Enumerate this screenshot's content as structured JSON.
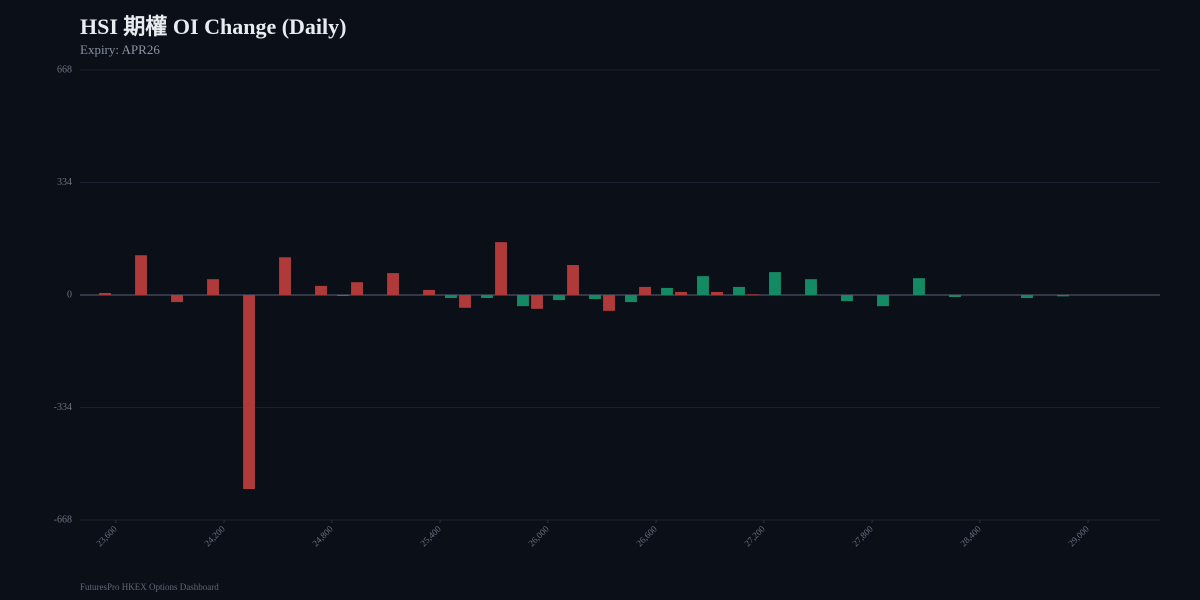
{
  "chart_data": {
    "type": "bar",
    "title": "HSI 期權 OI Change (Daily)",
    "subtitle": "Expiry: APR26",
    "footer": "FuturesPro HKEX Options Dashboard",
    "x": [
      23600,
      23800,
      24000,
      24200,
      24400,
      24600,
      24800,
      25000,
      25200,
      25400,
      25600,
      25800,
      26000,
      26200,
      26400,
      26600,
      26800,
      27000,
      27200,
      27400,
      27600,
      27800,
      28000,
      28200,
      28400,
      28600,
      28800
    ],
    "series": [
      {
        "color": "#b03a3a",
        "values": [
          6,
          118,
          -21,
          47,
          -576,
          112,
          27,
          38,
          65,
          15,
          -38,
          157,
          -41,
          89,
          -47,
          24,
          9,
          9,
          2,
          null,
          null,
          null,
          null,
          null,
          null,
          null,
          null
        ]
      },
      {
        "color": "#138a63",
        "values": [
          null,
          null,
          null,
          null,
          null,
          null,
          -3,
          null,
          null,
          -9,
          -9,
          -33,
          -15,
          -12,
          -21,
          21,
          56,
          24,
          68,
          47,
          -18,
          -33,
          50,
          -6,
          null,
          -9,
          -4
        ]
      }
    ],
    "xlim": [
      23400,
      29400
    ],
    "xticks": [
      {
        "value": 23600,
        "label": "23,600"
      },
      {
        "value": 24200,
        "label": "24,200"
      },
      {
        "value": 24800,
        "label": "24,800"
      },
      {
        "value": 25400,
        "label": "25,400"
      },
      {
        "value": 26000,
        "label": "26,000"
      },
      {
        "value": 26600,
        "label": "26,600"
      },
      {
        "value": 27200,
        "label": "27,200"
      },
      {
        "value": 27800,
        "label": "27,800"
      },
      {
        "value": 28400,
        "label": "28,400"
      },
      {
        "value": 29000,
        "label": "29,000"
      }
    ],
    "ylim": [
      -668,
      668
    ],
    "yticks": [
      -668,
      -334,
      0,
      334,
      668
    ],
    "grid": true
  }
}
